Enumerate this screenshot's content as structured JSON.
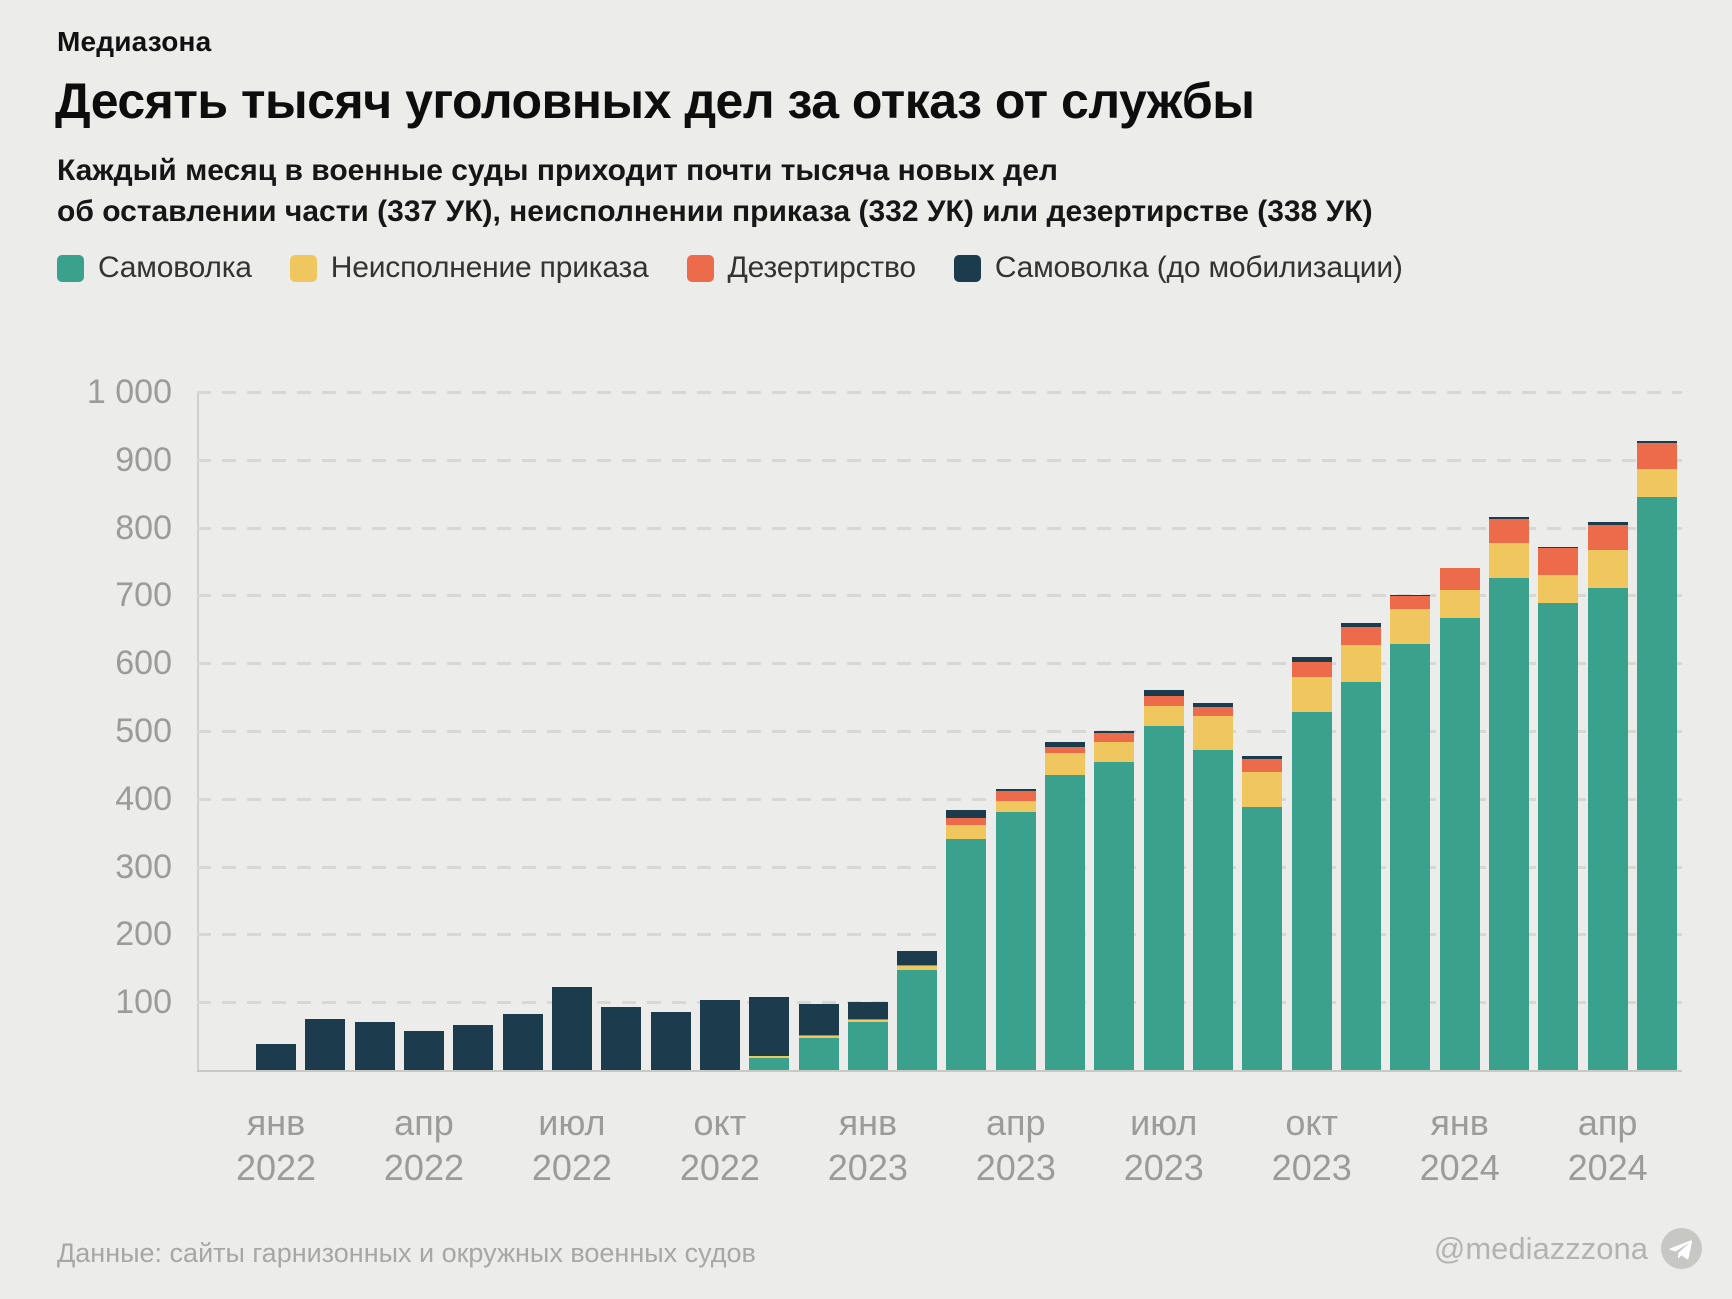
{
  "brand": "Медиазона",
  "header": {
    "title": "Десять тысяч уголовных дел за отказ от службы",
    "subtitle_line1": "Каждый месяц в военные суды приходит почти тысяча новых дел",
    "subtitle_line2": "об оставлении части (337 УК), неисполнении приказа (332 УК) или дезертирстве (338 УК)"
  },
  "footer": {
    "source": "Данные: сайты гарнизонных и окружных военных судов",
    "handle": "@mediazzzona",
    "handle_icon": "telegram-icon"
  },
  "colors": {
    "background": "#ECECEA",
    "awol": "#3AA18D",
    "order": "#F0C75F",
    "desertion": "#EB6B4A",
    "awol_pre": "#1C3B4D",
    "gridline": "#D7D7D4",
    "axis_text": "#9B9B99"
  },
  "chart_data": {
    "type": "bar",
    "subtype": "stacked-vertical",
    "title": "Десять тысяч уголовных дел за отказ от службы",
    "xlabel": "",
    "ylabel": "",
    "ylim": [
      0,
      1000
    ],
    "grid": "horizontal-dashed",
    "legend_position": "top",
    "stack_order_bottom_to_top": [
      "awol",
      "order",
      "desertion",
      "awol_pre"
    ],
    "months": [
      "янв 2022",
      "фев 2022",
      "мар 2022",
      "апр 2022",
      "май 2022",
      "июн 2022",
      "июл 2022",
      "авг 2022",
      "сен 2022",
      "окт 2022",
      "ноя 2022",
      "дек 2022",
      "янв 2023",
      "фев 2023",
      "мар 2023",
      "апр 2023",
      "май 2023",
      "июн 2023",
      "июл 2023",
      "авг 2023",
      "сен 2023",
      "окт 2023",
      "ноя 2023",
      "дек 2023",
      "янв 2024",
      "фев 2024",
      "мар 2024",
      "апр 2024",
      "май 2024"
    ],
    "series": [
      {
        "key": "awol",
        "name": "Самоволка",
        "color": "#3AA18D",
        "values": [
          0,
          0,
          0,
          0,
          0,
          0,
          0,
          0,
          0,
          0,
          18,
          47,
          71,
          148,
          341,
          380,
          435,
          455,
          508,
          472,
          388,
          528,
          572,
          628,
          667,
          726,
          689,
          711,
          845
        ]
      },
      {
        "key": "order",
        "name": "Неисполнение приказа",
        "color": "#F0C75F",
        "values": [
          0,
          0,
          0,
          0,
          0,
          0,
          0,
          0,
          0,
          0,
          2,
          3,
          3,
          5,
          21,
          17,
          33,
          29,
          29,
          50,
          52,
          52,
          55,
          52,
          41,
          52,
          41,
          56,
          41
        ]
      },
      {
        "key": "desertion",
        "name": "Дезертирство",
        "color": "#EB6B4A",
        "values": [
          0,
          0,
          0,
          0,
          0,
          0,
          0,
          0,
          0,
          0,
          0,
          1,
          1,
          2,
          9,
          15,
          8,
          13,
          15,
          14,
          18,
          22,
          26,
          19,
          32,
          35,
          40,
          37,
          39
        ]
      },
      {
        "key": "awol_pre",
        "name": "Самоволка (до мобилизации)",
        "color": "#1C3B4D",
        "values": [
          38,
          75,
          71,
          58,
          66,
          83,
          122,
          93,
          85,
          103,
          88,
          47,
          26,
          20,
          12,
          3,
          8,
          3,
          8,
          6,
          5,
          7,
          6,
          1,
          0,
          2,
          2,
          4,
          3
        ]
      }
    ],
    "totals": [
      38,
      75,
      71,
      58,
      66,
      83,
      122,
      93,
      85,
      103,
      108,
      98,
      101,
      175,
      383,
      415,
      484,
      500,
      560,
      542,
      463,
      609,
      659,
      700,
      740,
      815,
      772,
      808,
      928
    ],
    "y_ticks": [
      {
        "value": 100,
        "label": "100"
      },
      {
        "value": 200,
        "label": "200"
      },
      {
        "value": 300,
        "label": "300"
      },
      {
        "value": 400,
        "label": "400"
      },
      {
        "value": 500,
        "label": "500"
      },
      {
        "value": 600,
        "label": "600"
      },
      {
        "value": 700,
        "label": "700"
      },
      {
        "value": 800,
        "label": "800"
      },
      {
        "value": 900,
        "label": "900"
      },
      {
        "value": 1000,
        "label": "1 000"
      }
    ],
    "x_ticks": [
      {
        "bar": 0,
        "line1": "янв",
        "line2": "2022"
      },
      {
        "bar": 3,
        "line1": "апр",
        "line2": "2022"
      },
      {
        "bar": 6,
        "line1": "июл",
        "line2": "2022"
      },
      {
        "bar": 9,
        "line1": "окт",
        "line2": "2022"
      },
      {
        "bar": 12,
        "line1": "янв",
        "line2": "2023"
      },
      {
        "bar": 15,
        "line1": "апр",
        "line2": "2023"
      },
      {
        "bar": 18,
        "line1": "июл",
        "line2": "2023"
      },
      {
        "bar": 21,
        "line1": "окт",
        "line2": "2023"
      },
      {
        "bar": 24,
        "line1": "янв",
        "line2": "2024"
      },
      {
        "bar": 27,
        "line1": "апр",
        "line2": "2024"
      }
    ]
  }
}
